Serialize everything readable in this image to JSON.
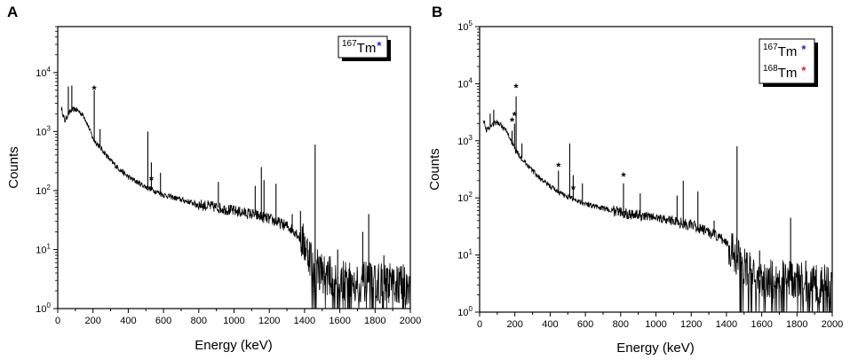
{
  "chart_data": [
    {
      "panel": "A",
      "type": "line",
      "xlabel": "Energy (keV)",
      "ylabel": "Counts",
      "xlim": [
        0,
        2000
      ],
      "x_ticks": [
        "0",
        "200",
        "400",
        "600",
        "800",
        "1000",
        "1200",
        "1400",
        "1600",
        "1800",
        "2000"
      ],
      "y_scale": "log",
      "ylim": [
        1,
        60000
      ],
      "y_ticks": [
        {
          "base": "10",
          "exp": "0"
        },
        {
          "base": "10",
          "exp": "1"
        },
        {
          "base": "10",
          "exp": "2"
        },
        {
          "base": "10",
          "exp": "3"
        },
        {
          "base": "10",
          "exp": "4"
        }
      ],
      "legend": [
        {
          "mass": "167",
          "symbol": "Tm",
          "marker": "*",
          "color": "#1f1fd6"
        }
      ],
      "continuum": [
        [
          20,
          2500
        ],
        [
          40,
          1500
        ],
        [
          60,
          2000
        ],
        [
          80,
          2300
        ],
        [
          100,
          2400
        ],
        [
          120,
          2200
        ],
        [
          150,
          1800
        ],
        [
          180,
          1100
        ],
        [
          200,
          750
        ],
        [
          250,
          500
        ],
        [
          300,
          320
        ],
        [
          350,
          230
        ],
        [
          400,
          170
        ],
        [
          450,
          140
        ],
        [
          500,
          115
        ],
        [
          600,
          85
        ],
        [
          700,
          70
        ],
        [
          800,
          58
        ],
        [
          900,
          52
        ],
        [
          1000,
          45
        ],
        [
          1100,
          40
        ],
        [
          1200,
          33
        ],
        [
          1300,
          25
        ],
        [
          1350,
          20
        ],
        [
          1400,
          12
        ],
        [
          1450,
          6
        ],
        [
          1500,
          4
        ],
        [
          1600,
          3
        ],
        [
          2000,
          2.5
        ]
      ],
      "peaks": [
        {
          "x": 60,
          "y": 5800
        },
        {
          "x": 80,
          "y": 6000
        },
        {
          "x": 207,
          "y": 5000
        },
        {
          "x": 240,
          "y": 1100
        },
        {
          "x": 511,
          "y": 1000
        },
        {
          "x": 531,
          "y": 300
        },
        {
          "x": 583,
          "y": 200
        },
        {
          "x": 911,
          "y": 140
        },
        {
          "x": 1120,
          "y": 120
        },
        {
          "x": 1155,
          "y": 250
        },
        {
          "x": 1170,
          "y": 150
        },
        {
          "x": 1238,
          "y": 130
        },
        {
          "x": 1330,
          "y": 40
        },
        {
          "x": 1377,
          "y": 45
        },
        {
          "x": 1460,
          "y": 600
        },
        {
          "x": 1588,
          "y": 10
        },
        {
          "x": 1730,
          "y": 20
        },
        {
          "x": 1764,
          "y": 40
        },
        {
          "x": 1850,
          "y": 8
        }
      ],
      "markers": [
        {
          "x": 207,
          "y": 5400,
          "color": "#1f1fd6"
        },
        {
          "x": 531,
          "y": 160,
          "color": "#1f1fd6"
        }
      ]
    },
    {
      "panel": "B",
      "type": "line",
      "xlabel": "Energy (keV)",
      "ylabel": "Counts",
      "xlim": [
        0,
        2000
      ],
      "x_ticks": [
        "0",
        "200",
        "400",
        "600",
        "800",
        "1000",
        "1200",
        "1400",
        "1600",
        "1800",
        "2000"
      ],
      "y_scale": "log",
      "ylim": [
        1,
        100000
      ],
      "y_ticks": [
        {
          "base": "10",
          "exp": "0"
        },
        {
          "base": "10",
          "exp": "1"
        },
        {
          "base": "10",
          "exp": "2"
        },
        {
          "base": "10",
          "exp": "3"
        },
        {
          "base": "10",
          "exp": "4"
        },
        {
          "base": "10",
          "exp": "5"
        }
      ],
      "legend": [
        {
          "mass": "167",
          "symbol": "Tm",
          "marker": "*",
          "color": "#1f1fd6"
        },
        {
          "mass": "168",
          "symbol": "Tm",
          "marker": "*",
          "color": "#e02020"
        }
      ],
      "continuum": [
        [
          20,
          2500
        ],
        [
          40,
          1500
        ],
        [
          60,
          1800
        ],
        [
          80,
          2000
        ],
        [
          100,
          2100
        ],
        [
          120,
          1900
        ],
        [
          150,
          1500
        ],
        [
          180,
          1000
        ],
        [
          200,
          700
        ],
        [
          250,
          450
        ],
        [
          300,
          300
        ],
        [
          350,
          210
        ],
        [
          400,
          160
        ],
        [
          450,
          125
        ],
        [
          500,
          105
        ],
        [
          600,
          80
        ],
        [
          700,
          65
        ],
        [
          800,
          56
        ],
        [
          900,
          50
        ],
        [
          1000,
          45
        ],
        [
          1100,
          40
        ],
        [
          1200,
          33
        ],
        [
          1300,
          25
        ],
        [
          1400,
          17
        ],
        [
          1450,
          10
        ],
        [
          1500,
          6
        ],
        [
          1600,
          4
        ],
        [
          2000,
          3
        ]
      ],
      "peaks": [
        {
          "x": 60,
          "y": 3000
        },
        {
          "x": 80,
          "y": 3500
        },
        {
          "x": 184,
          "y": 1500
        },
        {
          "x": 198,
          "y": 2000
        },
        {
          "x": 207,
          "y": 6000
        },
        {
          "x": 240,
          "y": 900
        },
        {
          "x": 447,
          "y": 300
        },
        {
          "x": 511,
          "y": 900
        },
        {
          "x": 531,
          "y": 250
        },
        {
          "x": 583,
          "y": 180
        },
        {
          "x": 816,
          "y": 180
        },
        {
          "x": 911,
          "y": 120
        },
        {
          "x": 1120,
          "y": 110
        },
        {
          "x": 1155,
          "y": 200
        },
        {
          "x": 1238,
          "y": 130
        },
        {
          "x": 1330,
          "y": 40
        },
        {
          "x": 1460,
          "y": 800
        },
        {
          "x": 1588,
          "y": 12
        },
        {
          "x": 1764,
          "y": 45
        },
        {
          "x": 1850,
          "y": 8
        }
      ],
      "markers": [
        {
          "x": 207,
          "y": 9000,
          "color": "#1f1fd6"
        },
        {
          "x": 531,
          "y": 150,
          "color": "#1f1fd6"
        },
        {
          "x": 184,
          "y": 2300,
          "color": "#e02020"
        },
        {
          "x": 198,
          "y": 2900,
          "color": "#e02020"
        },
        {
          "x": 447,
          "y": 370,
          "color": "#e02020"
        },
        {
          "x": 816,
          "y": 250,
          "color": "#e02020"
        }
      ]
    }
  ]
}
